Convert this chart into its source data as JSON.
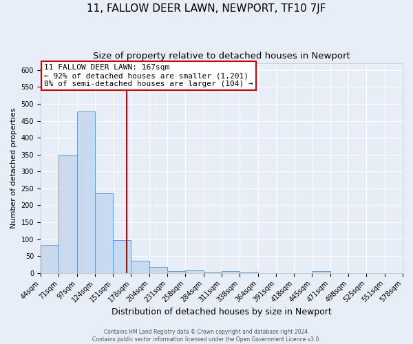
{
  "title": "11, FALLOW DEER LAWN, NEWPORT, TF10 7JF",
  "subtitle": "Size of property relative to detached houses in Newport",
  "bar_values": [
    83,
    350,
    478,
    235,
    97,
    37,
    18,
    5,
    7,
    1,
    5,
    1,
    0,
    0,
    0,
    5,
    0,
    0,
    0,
    0
  ],
  "bin_labels": [
    "44sqm",
    "71sqm",
    "97sqm",
    "124sqm",
    "151sqm",
    "178sqm",
    "204sqm",
    "231sqm",
    "258sqm",
    "284sqm",
    "311sqm",
    "338sqm",
    "364sqm",
    "391sqm",
    "418sqm",
    "445sqm",
    "471sqm",
    "498sqm",
    "525sqm",
    "551sqm",
    "578sqm"
  ],
  "xlabel": "Distribution of detached houses by size in Newport",
  "ylabel": "Number of detached properties",
  "bar_color": "#c9d9ef",
  "bar_edge_color": "#6699cc",
  "vline_x": 4.74,
  "vline_color": "#cc0000",
  "annotation_title": "11 FALLOW DEER LAWN: 167sqm",
  "annotation_line1": "← 92% of detached houses are smaller (1,201)",
  "annotation_line2": "8% of semi-detached houses are larger (104) →",
  "annotation_box_color": "#cc0000",
  "ylim": [
    0,
    620
  ],
  "yticks": [
    0,
    50,
    100,
    150,
    200,
    250,
    300,
    350,
    400,
    450,
    500,
    550,
    600
  ],
  "footer1": "Contains HM Land Registry data © Crown copyright and database right 2024.",
  "footer2": "Contains public sector information licensed under the Open Government Licence v3.0.",
  "background_color": "#e8eef7",
  "plot_bg_color": "#e8eef7",
  "grid_color": "#ffffff",
  "title_fontsize": 11,
  "subtitle_fontsize": 9.5,
  "ylabel_fontsize": 8,
  "xlabel_fontsize": 9,
  "tick_fontsize": 7,
  "footer_fontsize": 5.5,
  "annotation_fontsize": 8
}
